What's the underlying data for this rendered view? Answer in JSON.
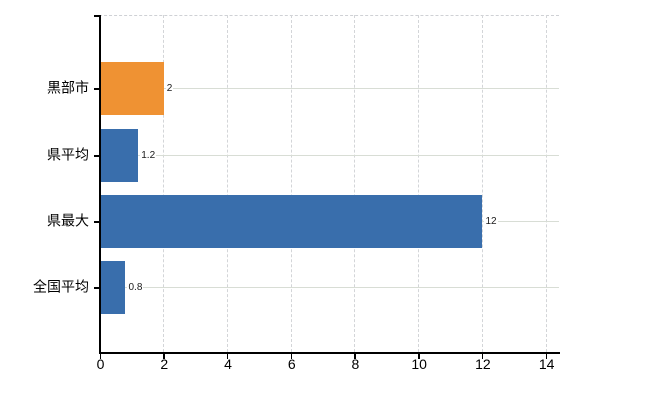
{
  "chart_data": {
    "type": "bar",
    "orientation": "horizontal",
    "categories": [
      "黒部市",
      "県平均",
      "県最大",
      "全国平均"
    ],
    "values": [
      2,
      1.2,
      12,
      0.8
    ],
    "value_labels": [
      "2",
      "1.2",
      "12",
      "0.8"
    ],
    "bar_colors": [
      "#EF9233",
      "#396EAC",
      "#396EAC",
      "#396EAC"
    ],
    "x_ticks": [
      0,
      2,
      4,
      6,
      8,
      10,
      12,
      14
    ],
    "x_tick_labels": [
      "0",
      "2",
      "4",
      "6",
      "8",
      "10",
      "12",
      "14"
    ],
    "xlim": [
      0,
      14.4
    ],
    "grid": true,
    "legend": false
  },
  "colors": {
    "bar_orange": "#EF9233",
    "bar_blue": "#396EAC",
    "axis": "#000000",
    "gridline_h": "#D8DDD5",
    "gridline_v": "#D3D5D8",
    "value_label_text": "#1A1A1A"
  }
}
